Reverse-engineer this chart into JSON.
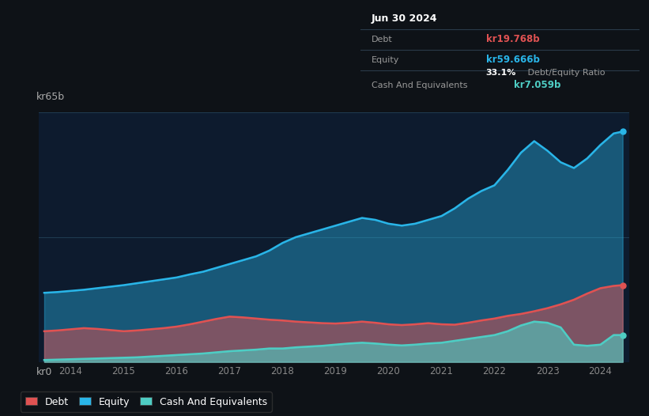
{
  "background_color": "#0e1217",
  "plot_bg_color": "#0d1b2e",
  "title_date": "Jun 30 2024",
  "tooltip_debt_label": "Debt",
  "tooltip_debt_val": "kr19.768b",
  "tooltip_equity_label": "Equity",
  "tooltip_equity_val": "kr59.666b",
  "tooltip_ratio": "33.1%",
  "tooltip_ratio_suffix": " Debt/Equity Ratio",
  "tooltip_cash_label": "Cash And Equivalents",
  "tooltip_cash_val": "kr7.059b",
  "debt_color": "#e05252",
  "equity_color": "#29b5e8",
  "cash_color": "#4ecdc4",
  "legend_labels": [
    "Debt",
    "Equity",
    "Cash And Equivalents"
  ],
  "x_ticks": [
    2014,
    2015,
    2016,
    2017,
    2018,
    2019,
    2020,
    2021,
    2022,
    2023,
    2024
  ],
  "ylim": [
    0,
    65
  ],
  "xlim": [
    2013.4,
    2024.55
  ],
  "equity_x": [
    2013.5,
    2013.75,
    2014.0,
    2014.25,
    2014.5,
    2014.75,
    2015.0,
    2015.25,
    2015.5,
    2015.75,
    2016.0,
    2016.25,
    2016.5,
    2016.75,
    2017.0,
    2017.25,
    2017.5,
    2017.75,
    2018.0,
    2018.25,
    2018.5,
    2018.75,
    2019.0,
    2019.25,
    2019.5,
    2019.75,
    2020.0,
    2020.25,
    2020.5,
    2020.75,
    2021.0,
    2021.25,
    2021.5,
    2021.75,
    2022.0,
    2022.25,
    2022.5,
    2022.75,
    2023.0,
    2023.25,
    2023.5,
    2023.75,
    2024.0,
    2024.25,
    2024.42
  ],
  "equity_y": [
    18.0,
    18.2,
    18.5,
    18.8,
    19.2,
    19.6,
    20.0,
    20.5,
    21.0,
    21.5,
    22.0,
    22.8,
    23.5,
    24.5,
    25.5,
    26.5,
    27.5,
    29.0,
    31.0,
    32.5,
    33.5,
    34.5,
    35.5,
    36.5,
    37.5,
    37.0,
    36.0,
    35.5,
    36.0,
    37.0,
    38.0,
    40.0,
    42.5,
    44.5,
    46.0,
    50.0,
    54.5,
    57.5,
    55.0,
    52.0,
    50.5,
    53.0,
    56.5,
    59.5,
    60.0
  ],
  "debt_x": [
    2013.5,
    2013.75,
    2014.0,
    2014.25,
    2014.5,
    2014.75,
    2015.0,
    2015.25,
    2015.5,
    2015.75,
    2016.0,
    2016.25,
    2016.5,
    2016.75,
    2017.0,
    2017.25,
    2017.5,
    2017.75,
    2018.0,
    2018.25,
    2018.5,
    2018.75,
    2019.0,
    2019.25,
    2019.5,
    2019.75,
    2020.0,
    2020.25,
    2020.5,
    2020.75,
    2021.0,
    2021.25,
    2021.5,
    2021.75,
    2022.0,
    2022.25,
    2022.5,
    2022.75,
    2023.0,
    2023.25,
    2023.5,
    2023.75,
    2024.0,
    2024.25,
    2024.42
  ],
  "debt_y": [
    8.0,
    8.2,
    8.5,
    8.8,
    8.6,
    8.3,
    8.0,
    8.2,
    8.5,
    8.8,
    9.2,
    9.8,
    10.5,
    11.2,
    11.8,
    11.6,
    11.3,
    11.0,
    10.8,
    10.5,
    10.3,
    10.1,
    10.0,
    10.2,
    10.5,
    10.2,
    9.8,
    9.6,
    9.8,
    10.1,
    9.8,
    9.7,
    10.2,
    10.8,
    11.3,
    12.0,
    12.5,
    13.2,
    14.0,
    15.0,
    16.2,
    17.8,
    19.2,
    19.8,
    20.0
  ],
  "cash_x": [
    2013.5,
    2013.75,
    2014.0,
    2014.25,
    2014.5,
    2014.75,
    2015.0,
    2015.25,
    2015.5,
    2015.75,
    2016.0,
    2016.25,
    2016.5,
    2016.75,
    2017.0,
    2017.25,
    2017.5,
    2017.75,
    2018.0,
    2018.25,
    2018.5,
    2018.75,
    2019.0,
    2019.25,
    2019.5,
    2019.75,
    2020.0,
    2020.25,
    2020.5,
    2020.75,
    2021.0,
    2021.25,
    2021.5,
    2021.75,
    2022.0,
    2022.25,
    2022.5,
    2022.75,
    2023.0,
    2023.25,
    2023.5,
    2023.75,
    2024.0,
    2024.25,
    2024.42
  ],
  "cash_y": [
    0.5,
    0.6,
    0.7,
    0.8,
    0.9,
    1.0,
    1.1,
    1.2,
    1.4,
    1.6,
    1.8,
    2.0,
    2.2,
    2.5,
    2.8,
    3.0,
    3.2,
    3.5,
    3.5,
    3.8,
    4.0,
    4.2,
    4.5,
    4.8,
    5.0,
    4.8,
    4.5,
    4.3,
    4.5,
    4.8,
    5.0,
    5.5,
    6.0,
    6.5,
    7.0,
    8.0,
    9.5,
    10.5,
    10.2,
    9.0,
    4.5,
    4.2,
    4.5,
    7.0,
    7.0
  ]
}
